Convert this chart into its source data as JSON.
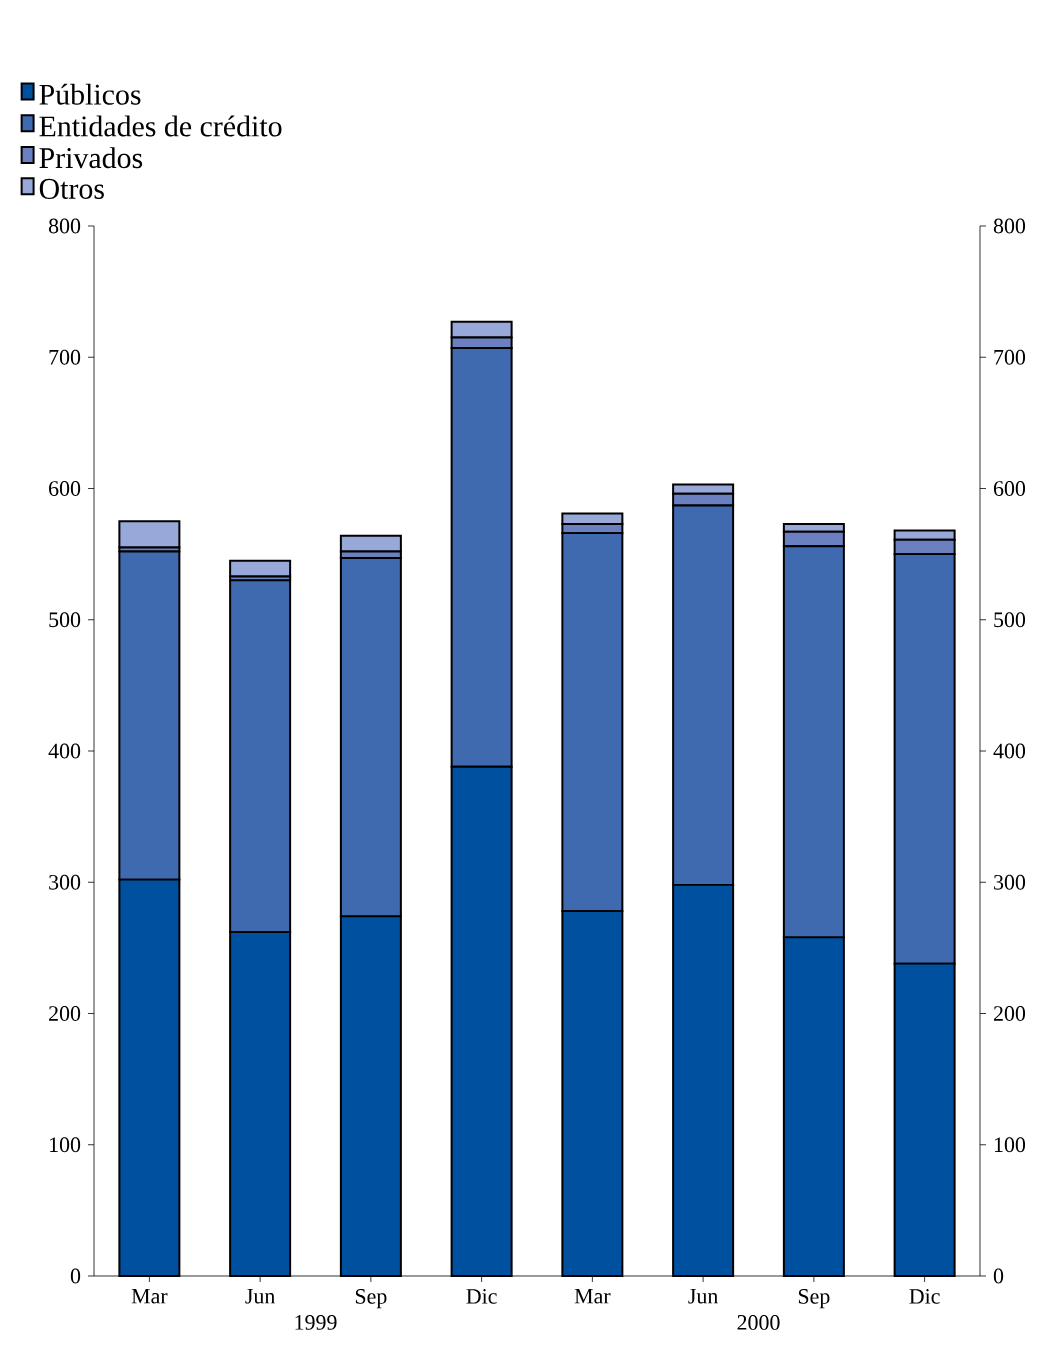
{
  "chart_data": {
    "type": "bar",
    "stacked": true,
    "categories": [
      "Mar",
      "Jun",
      "Sep",
      "Dic",
      "Mar",
      "Jun",
      "Sep",
      "Dic"
    ],
    "series": [
      {
        "name": "Públicos",
        "color": "#0050a0",
        "values": [
          302,
          262,
          274,
          388,
          278,
          298,
          258,
          238
        ]
      },
      {
        "name": "Entidades de crédito",
        "color": "#3f6ab0",
        "values": [
          250,
          268,
          273,
          319,
          288,
          289,
          298,
          312
        ]
      },
      {
        "name": "Privados",
        "color": "#6a80c0",
        "values": [
          3,
          3,
          5,
          8,
          7,
          9,
          11,
          11
        ]
      },
      {
        "name": "Otros",
        "color": "#98a8d8",
        "values": [
          20,
          12,
          12,
          12,
          8,
          7,
          6,
          7
        ]
      }
    ],
    "annotations": [
      "1999",
      "2000"
    ],
    "ylim": [
      0,
      800
    ],
    "yticks": [
      0,
      100,
      200,
      300,
      400,
      500,
      600,
      700,
      800
    ],
    "y2lim": [
      0,
      800
    ],
    "y2ticks": [
      0,
      100,
      200,
      300,
      400,
      500,
      600,
      700,
      800
    ],
    "legend": "top left",
    "grid": false
  }
}
